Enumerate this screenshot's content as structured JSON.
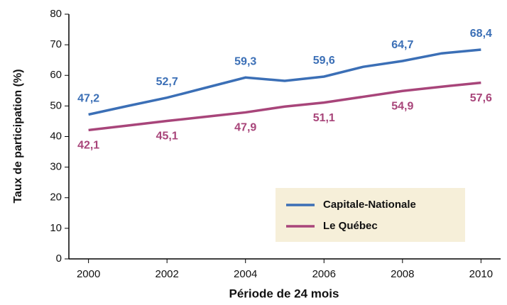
{
  "chart_data": {
    "type": "line",
    "x_label": "Période de 24 mois",
    "y_label": "Taux de participation (%)",
    "x": [
      2000,
      2001,
      2002,
      2003,
      2004,
      2005,
      2006,
      2007,
      2008,
      2009,
      2010
    ],
    "series": [
      {
        "name": "Capitale-Nationale",
        "color": "#3b6fb6",
        "values": [
          47.2,
          50.0,
          52.7,
          56.0,
          59.3,
          58.2,
          59.6,
          62.8,
          64.7,
          67.2,
          68.4
        ],
        "value_labels": [
          "47,2",
          null,
          "52,7",
          null,
          "59,3",
          null,
          "59,6",
          null,
          "64,7",
          null,
          "68,4"
        ]
      },
      {
        "name": "Le Québec",
        "color": "#a8457a",
        "values": [
          42.1,
          43.6,
          45.1,
          46.5,
          47.9,
          49.8,
          51.1,
          53.0,
          54.9,
          56.3,
          57.6
        ],
        "value_labels": [
          "42,1",
          null,
          "45,1",
          null,
          "47,9",
          null,
          "51,1",
          null,
          "54,9",
          null,
          "57,6"
        ]
      }
    ],
    "xlim": [
      1999.5,
      2010.5
    ],
    "xticks": [
      2000,
      2002,
      2004,
      2006,
      2008,
      2010
    ],
    "ylim": [
      0,
      80
    ],
    "yticks": [
      0,
      10,
      20,
      30,
      40,
      50,
      60,
      70,
      80
    ]
  }
}
